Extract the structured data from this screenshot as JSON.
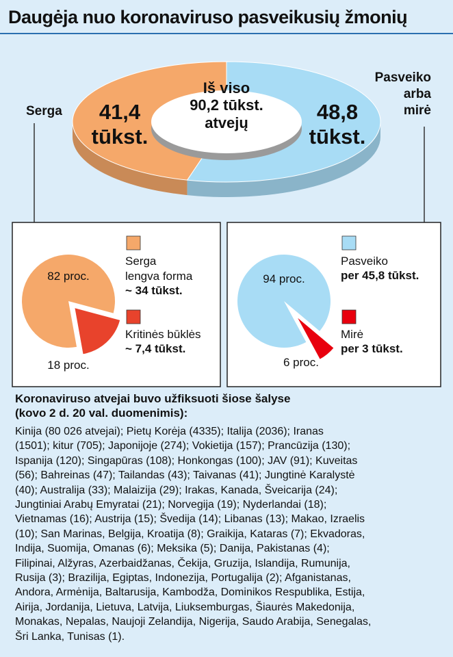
{
  "header": {
    "title": "Daugėja nuo koronaviruso pasveikusių žmonių"
  },
  "chart_data": [
    {
      "type": "pie3d",
      "center_label": "Iš viso\n90,2 tūkst.\natvejų",
      "series": [
        {
          "name": "Serga",
          "color": "#f5a86a",
          "values": [
            41.4
          ],
          "value_labels": [
            "41,4\ntūkst."
          ]
        },
        {
          "name": "Pasveiko\narba\nmirė",
          "color": "#a8dcf5",
          "values": [
            48.8
          ],
          "value_labels": [
            "48,8\ntūkst."
          ]
        }
      ]
    },
    {
      "type": "pie",
      "series": [
        {
          "name": "Serga\nlengva forma",
          "detail": "~ 34 tūkst.",
          "color": "#f5a86a",
          "values": [
            82
          ],
          "value_labels": [
            "82 proc."
          ]
        },
        {
          "name": "Kritinės būklės",
          "detail": "~ 7,4 tūkst.",
          "color": "#e8432c",
          "values": [
            18
          ],
          "value_labels": [
            "18 proc."
          ]
        }
      ]
    },
    {
      "type": "pie",
      "series": [
        {
          "name": "Pasveiko",
          "detail": "per 45,8 tūkst.",
          "color": "#a8dcf5",
          "values": [
            94
          ],
          "value_labels": [
            "94 proc."
          ]
        },
        {
          "name": "Mirė",
          "detail": "per 3 tūkst.",
          "color": "#e8000e",
          "values": [
            6
          ],
          "value_labels": [
            "6 proc."
          ]
        }
      ]
    }
  ],
  "text": {
    "heading": "Koronaviruso atvejai buvo užfiksuoti šiose šalyse\n(kovo 2 d. 20 val. duomenimis):",
    "lines": [
      "Kinija (80 026 atvejai); Pietų Korėja (4335); Italija (2036); Iranas",
      "(1501); kitur (705); Japonijoje (274); Vokietija (157); Prancūzija (130);",
      "Ispanija (120); Singapūras (108); Honkongas (100); JAV (91); Kuveitas",
      "(56); Bahreinas (47); Tailandas (43); Taivanas (41); Jungtinė Karalystė",
      "(40); Australija (33); Malaizija (29); Irakas, Kanada, Šveicarija (24);",
      "Jungtiniai Arabų Emyratai (21); Norvegija (19); Nyderlandai (18);",
      "Vietnamas (16); Austrija (15); Švedija (14); Libanas (13); Makao, Izraelis",
      "(10); San Marinas, Belgija, Kroatija (8); Graikija, Kataras (7); Ekvadoras,",
      "Indija, Suomija, Omanas (6); Meksika (5); Danija, Pakistanas (4);",
      "Filipinai, Alžyras, Azerbaidžanas, Čekija, Gruzija, Islandija, Rumunija,",
      "Rusija (3); Brazilija, Egiptas, Indonezija, Portugalija (2); Afganistanas,",
      "Andora, Armėnija, Baltarusija, Kambodža, Dominikos Respublika, Estija,",
      "Airija, Jordanija, Lietuva, Latvija, Liuksemburgas, Šiaurės Makedonija,",
      "Monakas, Nepalas, Naujoji Zelandija, Nigerija, Saudo Arabija, Senegalas,",
      "Šri Lanka, Tunisas (1)."
    ]
  }
}
